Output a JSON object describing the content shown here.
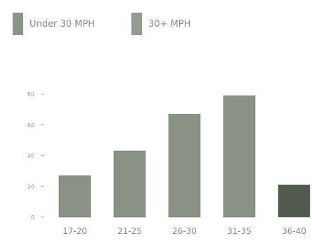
{
  "chart_data": {
    "type": "bar",
    "title": "",
    "xlabel": "",
    "ylabel": "",
    "categories": [
      "17-20",
      "21-25",
      "26-30",
      "31-35",
      "36-40"
    ],
    "values": [
      27,
      43,
      67,
      79,
      21
    ],
    "value_groups": [
      "Under 30 MPH",
      "Under 30 MPH",
      "Under 30 MPH",
      "Under 30 MPH",
      "30+ MPH"
    ],
    "ylim": [
      0,
      80
    ],
    "yticks": [
      0,
      20,
      40,
      60,
      80
    ],
    "grid": false,
    "legend_position": "top-left",
    "legend": [
      {
        "label": "Under 30 MPH",
        "color": "#8c9488"
      },
      {
        "label": "30+ MPH",
        "color": "#939b8f"
      }
    ],
    "bar_colors": [
      "#8a9286",
      "#8a9286",
      "#8a9286",
      "#8a9286",
      "#525a50"
    ]
  }
}
